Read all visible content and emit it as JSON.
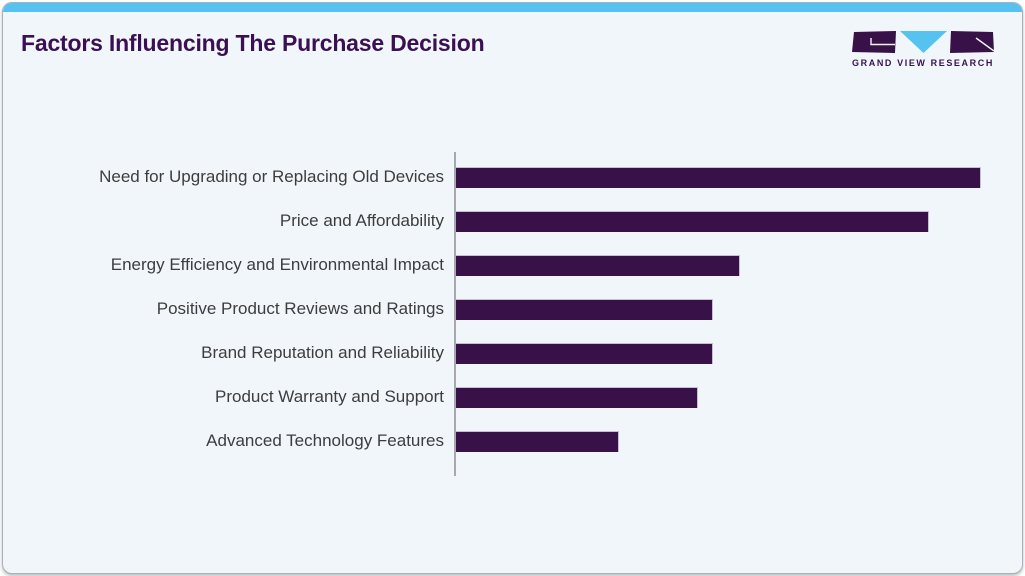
{
  "header": {
    "title": "Factors Influencing The Purchase Decision",
    "logo": {
      "brand": "GRAND VIEW RESEARCH"
    }
  },
  "chart_data": {
    "type": "bar",
    "orientation": "horizontal",
    "title": "Factors Influencing The Purchase Decision",
    "categories": [
      "Need for Upgrading or Replacing Old Devices",
      "Price and Affordability",
      "Energy Efficiency and Environmental Impact",
      "Positive Product Reviews and Ratings",
      "Brand Reputation and Reliability",
      "Product Warranty and Support",
      "Advanced Technology Features"
    ],
    "values": [
      100,
      90,
      54,
      49,
      49,
      46,
      31
    ],
    "xlabel": "",
    "ylabel": "",
    "xlim": [
      0,
      100
    ],
    "grid": false,
    "legend": false,
    "note": "No numeric axis shown; values estimated relative to longest bar = 100"
  },
  "theme": {
    "card_bg": "#f1f6fa",
    "accent_blue": "#56c2ef",
    "bar_purple": "#371147",
    "title_purple": "#3b1053",
    "label_gray": "#3d3d3d",
    "axis_gray": "#a7a7ad"
  }
}
